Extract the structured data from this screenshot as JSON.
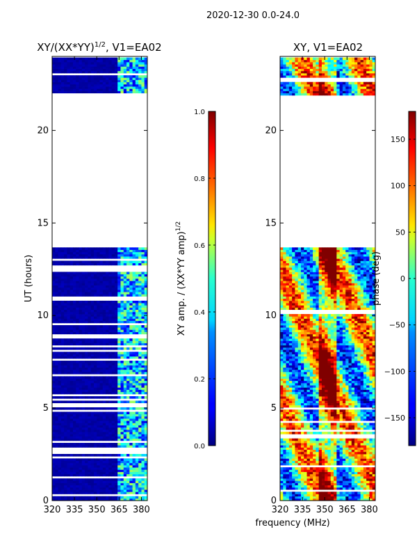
{
  "figure_title": "2020-12-30 0.0-24.0",
  "xlabel": "frequency (MHz)",
  "chart_data": [
    {
      "type": "heatmap",
      "name": "amplitude-ratio",
      "title": "XY/(XX*YY)",
      "title_exponent": "1/2",
      "title_suffix": ", V1=EA02",
      "xlabel": "",
      "ylabel": "UT (hours)",
      "xlim": [
        320,
        384
      ],
      "ylim": [
        0,
        24
      ],
      "xticks": [
        320,
        335,
        350,
        365,
        380
      ],
      "yticks": [
        0,
        5,
        10,
        15,
        20
      ],
      "colormap": "jet",
      "colorbar": {
        "label": "XY amp. / (XX*YY amp)",
        "label_exponent": "1/2",
        "range": [
          0.0,
          1.0
        ],
        "ticks": [
          "0.0",
          "0.2",
          "0.4",
          "0.6",
          "0.8",
          "1.0"
        ]
      },
      "data_rows_hours": [
        [
          0,
          13.6
        ],
        [
          21.9,
          23.9
        ]
      ],
      "gap_hours": [
        13.6,
        21.9
      ],
      "high_amplitude_band_mhz": [
        363,
        383
      ]
    },
    {
      "type": "heatmap",
      "name": "phase",
      "title": "XY, V1=EA02",
      "xlabel": "",
      "ylabel": "",
      "xlim": [
        320,
        384
      ],
      "ylim": [
        0,
        24
      ],
      "xticks": [
        320,
        335,
        350,
        365,
        380
      ],
      "yticks": [
        0,
        5,
        10,
        15,
        20
      ],
      "colormap": "jet",
      "colorbar": {
        "label": "phase (deg)",
        "range": [
          -180,
          180
        ],
        "ticks": [
          "−150",
          "−100",
          "−50",
          "0",
          "50",
          "100",
          "150"
        ]
      },
      "data_rows_hours": [
        [
          0,
          13.6
        ],
        [
          21.9,
          23.9
        ]
      ],
      "gap_hours": [
        13.6,
        21.9
      ]
    }
  ]
}
